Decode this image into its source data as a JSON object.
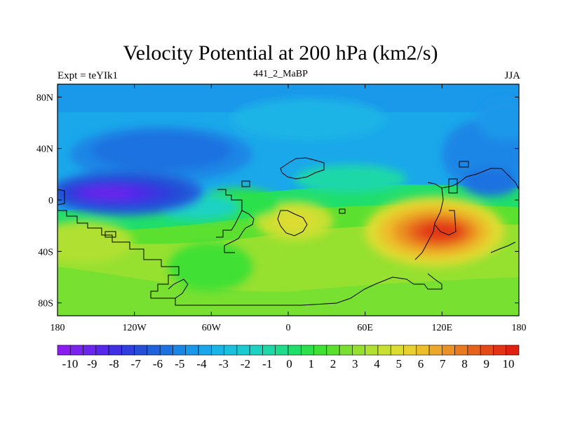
{
  "title": "Velocity Potential at 200 hPa (km2/s)",
  "left_label": "Expt = teYIk1",
  "center_label": "441_2_MaBP",
  "right_label": "JJA",
  "map": {
    "x_ticks": [
      {
        "lon": -180,
        "label": "180"
      },
      {
        "lon": -120,
        "label": "120W"
      },
      {
        "lon": -60,
        "label": "60W"
      },
      {
        "lon": 0,
        "label": "0"
      },
      {
        "lon": 60,
        "label": "60E"
      },
      {
        "lon": 120,
        "label": "120E"
      },
      {
        "lon": 180,
        "label": "180"
      }
    ],
    "y_ticks": [
      {
        "lat": 80,
        "label": "80N"
      },
      {
        "lat": 40,
        "label": "40N"
      },
      {
        "lat": 0,
        "label": "0"
      },
      {
        "lat": -40,
        "label": "40S"
      },
      {
        "lat": -80,
        "label": "80S"
      }
    ],
    "lon_range": [
      -180,
      180
    ],
    "lat_range": [
      -90,
      90
    ]
  },
  "colorbar": {
    "labels": [
      "-10",
      "-9",
      "-8",
      "-7",
      "-6",
      "-5",
      "-4",
      "-3",
      "-2",
      "-1",
      "0",
      "1",
      "2",
      "3",
      "4",
      "5",
      "6",
      "7",
      "8",
      "9",
      "10"
    ],
    "colors": [
      "#8a1cf0",
      "#7a22ee",
      "#6a26ec",
      "#5528ea",
      "#4030e2",
      "#2f3edc",
      "#244fd6",
      "#2061dc",
      "#1c72e0",
      "#1a86e6",
      "#1a98ea",
      "#1aa6ea",
      "#1ab4e6",
      "#1ac0de",
      "#1ccad2",
      "#1ed2c2",
      "#1ed8a8",
      "#1edc8a",
      "#20de6a",
      "#2ce04c",
      "#40e034",
      "#5ce030",
      "#78e030",
      "#96e030",
      "#b0e032",
      "#c8e032",
      "#dcdc32",
      "#e8d030",
      "#ecbe2c",
      "#eca828",
      "#ea9224",
      "#e87a20",
      "#e6621c",
      "#e44a18",
      "#e23414",
      "#e02010"
    ]
  },
  "chart_data": {
    "type": "heatmap",
    "title": "Velocity Potential at 200 hPa (km2/s)",
    "subtitle_left": "Expt = teYIk1",
    "subtitle_center": "441_2_MaBP",
    "subtitle_right": "JJA",
    "xlim": [
      -180,
      180
    ],
    "ylim": [
      -90,
      90
    ],
    "levels": [
      -10,
      -9,
      -8,
      -7,
      -6,
      -5,
      -4,
      -3,
      -2,
      -1,
      0,
      1,
      2,
      3,
      4,
      5,
      6,
      7,
      8,
      9,
      10
    ],
    "centers": [
      {
        "lon": -150,
        "lat": 5,
        "value": -9
      },
      {
        "lon": -90,
        "lat": 45,
        "value": -5
      },
      {
        "lon": 125,
        "lat": -22,
        "value": 9
      },
      {
        "lon": 0,
        "lat": -30,
        "value": 4
      }
    ],
    "grid": false,
    "colorbar": "bottom"
  }
}
